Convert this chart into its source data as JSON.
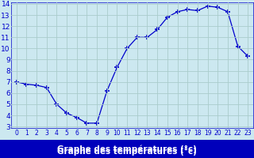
{
  "x": [
    0,
    1,
    2,
    3,
    4,
    5,
    6,
    7,
    8,
    9,
    10,
    11,
    12,
    13,
    14,
    15,
    16,
    17,
    18,
    19,
    20,
    21,
    22,
    23
  ],
  "y": [
    7.0,
    6.8,
    6.7,
    6.5,
    5.0,
    4.2,
    3.8,
    3.3,
    3.3,
    6.2,
    8.3,
    10.0,
    11.0,
    11.0,
    11.7,
    12.8,
    13.3,
    13.5,
    13.4,
    13.8,
    13.7,
    13.3,
    10.2,
    9.3
  ],
  "line_color": "#0000cc",
  "marker": "+",
  "marker_size": 4,
  "bg_color": "#cce8f0",
  "grid_color": "#aacccc",
  "xlabel": "Graphe des températures (°c)",
  "tick_label_color": "#0000cc",
  "ylim_min": 3,
  "ylim_max": 14,
  "xlim_min": 0,
  "xlim_max": 23,
  "yticks": [
    3,
    4,
    5,
    6,
    7,
    8,
    9,
    10,
    11,
    12,
    13,
    14
  ],
  "xticks": [
    0,
    1,
    2,
    3,
    4,
    5,
    6,
    7,
    8,
    9,
    10,
    11,
    12,
    13,
    14,
    15,
    16,
    17,
    18,
    19,
    20,
    21,
    22,
    23
  ],
  "xlabel_bg": "#0000bb",
  "xlabel_color": "#ffffff",
  "xlabel_fontsize": 7.5,
  "tick_fontsize_x": 5.5,
  "tick_fontsize_y": 6.5
}
